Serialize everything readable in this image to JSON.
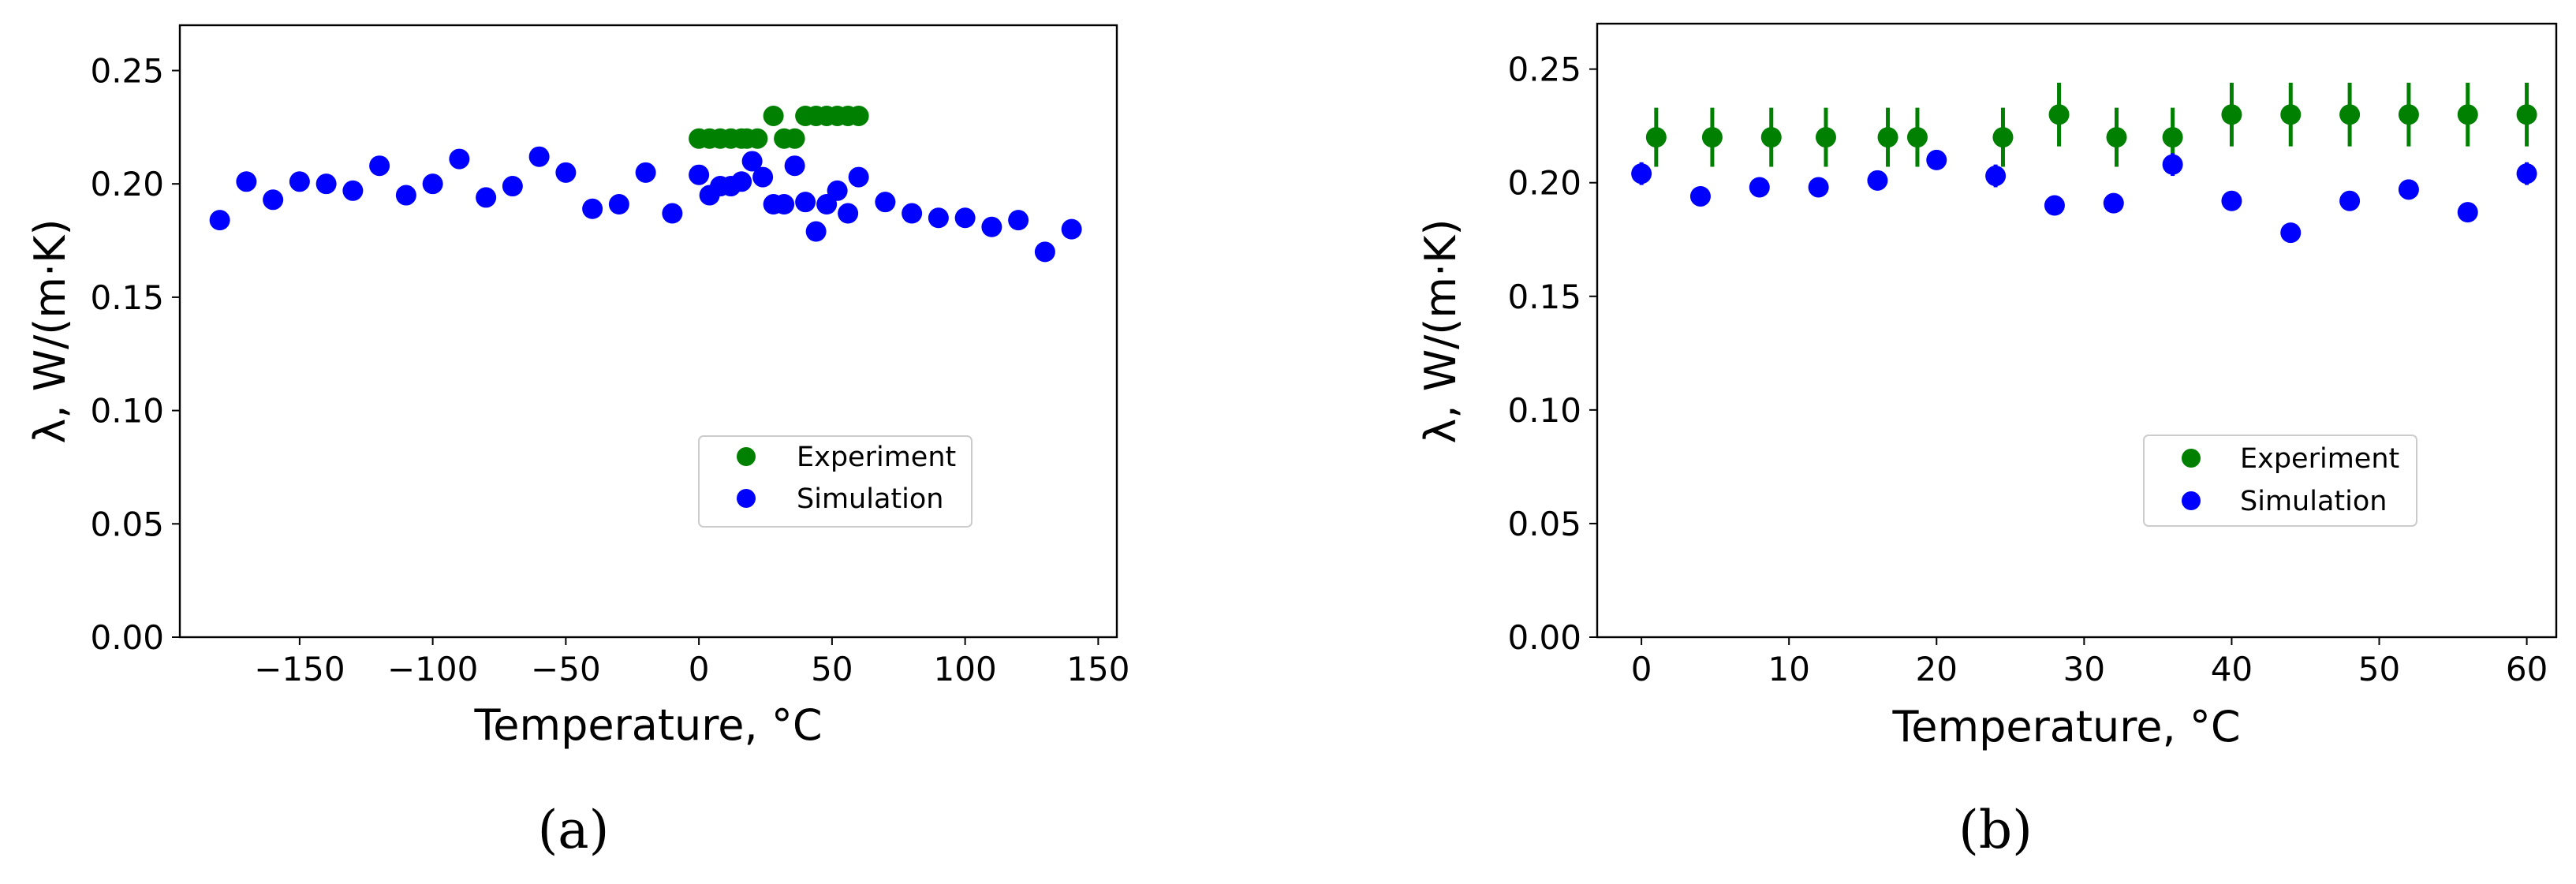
{
  "chart_data": [
    {
      "panel": "(a)",
      "type": "scatter",
      "xlabel": "Temperature, °C",
      "ylabel": "λ, W/(m·K)",
      "xlim": [
        -195,
        157
      ],
      "ylim": [
        0,
        0.27
      ],
      "xticks": [
        -150,
        -100,
        -50,
        0,
        50,
        100,
        150
      ],
      "xtick_labels": [
        "−150",
        "−100",
        "−50",
        "0",
        "50",
        "100",
        "150"
      ],
      "yticks": [
        0,
        0.05,
        0.1,
        0.15,
        0.2,
        0.25
      ],
      "ytick_labels": [
        "0.00",
        "0.05",
        "0.10",
        "0.15",
        "0.20",
        "0.25"
      ],
      "legend_position": "lower-right",
      "series": [
        {
          "name": "Experiment",
          "color": "#008000",
          "points": [
            [
              0,
              0.22
            ],
            [
              4,
              0.22
            ],
            [
              8,
              0.22
            ],
            [
              12,
              0.22
            ],
            [
              16,
              0.22
            ],
            [
              18,
              0.22
            ],
            [
              22,
              0.22
            ],
            [
              28,
              0.23
            ],
            [
              32,
              0.22
            ],
            [
              36,
              0.22
            ],
            [
              40,
              0.23
            ],
            [
              44,
              0.23
            ],
            [
              48,
              0.23
            ],
            [
              52,
              0.23
            ],
            [
              56,
              0.23
            ],
            [
              60,
              0.23
            ]
          ]
        },
        {
          "name": "Simulation",
          "color": "#0000ff",
          "points": [
            [
              -180,
              0.184
            ],
            [
              -170,
              0.201
            ],
            [
              -160,
              0.193
            ],
            [
              -150,
              0.201
            ],
            [
              -140,
              0.2
            ],
            [
              -130,
              0.197
            ],
            [
              -120,
              0.208
            ],
            [
              -110,
              0.195
            ],
            [
              -100,
              0.2
            ],
            [
              -90,
              0.211
            ],
            [
              -80,
              0.194
            ],
            [
              -70,
              0.199
            ],
            [
              -60,
              0.212
            ],
            [
              -50,
              0.205
            ],
            [
              -40,
              0.189
            ],
            [
              -30,
              0.191
            ],
            [
              -20,
              0.205
            ],
            [
              -10,
              0.187
            ],
            [
              0,
              0.204
            ],
            [
              4,
              0.195
            ],
            [
              8,
              0.199
            ],
            [
              12,
              0.199
            ],
            [
              16,
              0.201
            ],
            [
              20,
              0.21
            ],
            [
              24,
              0.203
            ],
            [
              28,
              0.191
            ],
            [
              32,
              0.191
            ],
            [
              36,
              0.208
            ],
            [
              40,
              0.192
            ],
            [
              44,
              0.179
            ],
            [
              48,
              0.191
            ],
            [
              52,
              0.197
            ],
            [
              56,
              0.187
            ],
            [
              60,
              0.203
            ],
            [
              70,
              0.192
            ],
            [
              80,
              0.187
            ],
            [
              90,
              0.185
            ],
            [
              100,
              0.185
            ],
            [
              110,
              0.181
            ],
            [
              120,
              0.184
            ],
            [
              130,
              0.17
            ],
            [
              140,
              0.18
            ]
          ]
        }
      ]
    },
    {
      "panel": "(b)",
      "type": "scatter",
      "error_bars": true,
      "xlabel": "Temperature, °C",
      "ylabel": "λ, W/(m·K)",
      "xlim": [
        -3,
        62
      ],
      "ylim": [
        0,
        0.27
      ],
      "xticks": [
        0,
        10,
        20,
        30,
        40,
        50,
        60
      ],
      "xtick_labels": [
        "0",
        "10",
        "20",
        "30",
        "40",
        "50",
        "60"
      ],
      "yticks": [
        0,
        0.05,
        0.1,
        0.15,
        0.2,
        0.25
      ],
      "ytick_labels": [
        "0.00",
        "0.05",
        "0.10",
        "0.15",
        "0.20",
        "0.25"
      ],
      "legend_position": "lower-right",
      "series": [
        {
          "name": "Experiment",
          "color": "#008000",
          "points": [
            [
              1,
              0.22
            ],
            [
              4.8,
              0.22
            ],
            [
              8.8,
              0.22
            ],
            [
              12.5,
              0.22
            ],
            [
              16.7,
              0.22
            ],
            [
              18.7,
              0.22
            ],
            [
              24.5,
              0.22
            ],
            [
              28.3,
              0.23
            ],
            [
              32.2,
              0.22
            ],
            [
              36,
              0.22
            ],
            [
              40,
              0.23
            ],
            [
              44,
              0.23
            ],
            [
              48,
              0.23
            ],
            [
              52,
              0.23
            ],
            [
              56,
              0.23
            ],
            [
              60,
              0.23
            ]
          ],
          "errors": [
            0.013,
            0.013,
            0.013,
            0.013,
            0.013,
            0.013,
            0.013,
            0.014,
            0.013,
            0.013,
            0.014,
            0.014,
            0.014,
            0.014,
            0.014,
            0.014
          ]
        },
        {
          "name": "Simulation",
          "color": "#0000ff",
          "points": [
            [
              0,
              0.204
            ],
            [
              4,
              0.194
            ],
            [
              8,
              0.198
            ],
            [
              12,
              0.198
            ],
            [
              16,
              0.201
            ],
            [
              20,
              0.21
            ],
            [
              24,
              0.203
            ],
            [
              28,
              0.19
            ],
            [
              32,
              0.191
            ],
            [
              36,
              0.208
            ],
            [
              40,
              0.192
            ],
            [
              44,
              0.178
            ],
            [
              48,
              0.192
            ],
            [
              52,
              0.197
            ],
            [
              56,
              0.187
            ],
            [
              60,
              0.204
            ]
          ],
          "errors": [
            0.005,
            0.004,
            0.004,
            0.004,
            0.004,
            0.004,
            0.005,
            0.004,
            0.004,
            0.005,
            0.004,
            0.003,
            0.004,
            0.004,
            0.004,
            0.005
          ]
        }
      ]
    }
  ]
}
